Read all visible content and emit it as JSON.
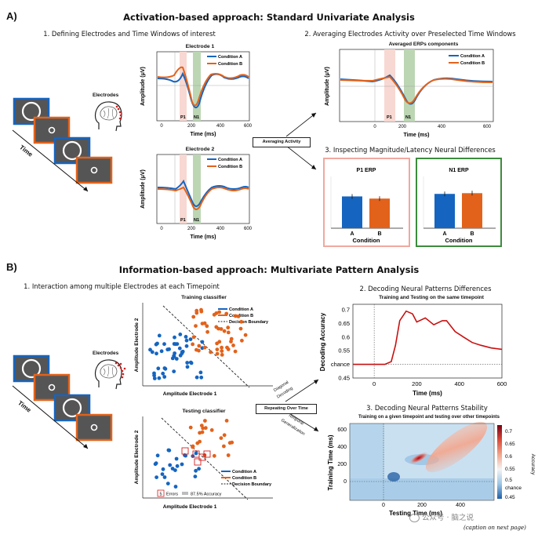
{
  "section_a": {
    "letter": "A)",
    "title": "Activation-based approach: Standard Univariate Analysis",
    "step1": "1. Defining Electrodes and Time Windows of interest",
    "step2": "2. Averaging Electrodes Activity over Preselected Time Windows",
    "step3": "3. Inspecting Magnitude/Latency Neural Differences",
    "electrodes_label": "Electrodes",
    "time_label": "Time",
    "averaging_button": "Averaging Activity",
    "plot_e1": {
      "title": "Electrode 1"
    },
    "plot_e2": {
      "title": "Electrode 2"
    },
    "plot_avg": {
      "title": "Averaged ERPs components"
    },
    "legend": {
      "a": "Condition A",
      "b": "Condition B"
    },
    "ylabel": "Amplitude (μV)",
    "xlabel": "Time (ms)",
    "xticks": [
      "0",
      "200",
      "400",
      "600"
    ],
    "p1_label": "P1",
    "n1_label": "N1",
    "p1_box": {
      "title": "P1 ERP",
      "cond_a": "A",
      "cond_b": "B",
      "xlabel": "Condition",
      "value_a": 0.88,
      "value_b": 0.82
    },
    "n1_box": {
      "title": "N1 ERP",
      "cond_a": "A",
      "cond_b": "B",
      "xlabel": "Condition",
      "value_a": 0.95,
      "value_b": 0.97
    }
  },
  "section_b": {
    "letter": "B)",
    "title": "Information-based approach: Multivariate Pattern Analysis",
    "step1": "1. Interaction among multiple Electrodes at each Timepoint",
    "step2": "2. Decoding Neural Patterns Differences",
    "step3": "3. Decoding Neural Patterns Stability",
    "electrodes_label": "Electrodes",
    "time_label": "Time",
    "repeat_button": "Repeating Over Time",
    "diagonal_label_1": "Diagonal",
    "diagonal_label_2": "Decoding",
    "temporal_label_1": "Temporal",
    "temporal_label_2": "Generalization",
    "training_title": "Training classifier",
    "testing_title": "Testing classifier",
    "scatter_xlabel": "Amplitude Electrode 1",
    "scatter_ylabel": "Amplitude Electrode 2",
    "legend": {
      "a": "Condition A",
      "b": "Condition B",
      "boundary": "Decision Boundary"
    },
    "errors_count": "5",
    "errors_text": "Errors",
    "accuracy_text": "87.5% Accuracy",
    "decoding": {
      "title": "Training and Testing on the same timepoint",
      "ylabel": "Decoding Accuracy",
      "xlabel": "Time (ms)",
      "yticks": [
        "0.7",
        "0.65",
        "0.6",
        "0.55",
        "0.5"
      ],
      "chance_label": "chance",
      "ytick_bottom": "0.45",
      "xticks": [
        "0",
        "200",
        "400",
        "600"
      ]
    },
    "tg": {
      "title": "Training on a given timepoint and testing over other timepoints",
      "ylabel": "Training Time (ms)",
      "xlabel": "Testing Time (ms)",
      "yticks": [
        "600",
        "400",
        "200",
        "0"
      ],
      "xticks": [
        "0",
        "200",
        "400"
      ],
      "cbar_label": "Accuracy",
      "cbar_ticks": [
        "0.7",
        "0.65",
        "0.6",
        "0.55",
        "0.5",
        "chance",
        "0.45"
      ]
    }
  },
  "watermark": "公众号 · 脑之说",
  "caption": "(caption on next page)",
  "chart_data": [
    {
      "type": "line",
      "title": "Training and Testing on the same timepoint",
      "xlabel": "Time (ms)",
      "ylabel": "Decoding Accuracy",
      "x": [
        -100,
        -50,
        0,
        50,
        80,
        100,
        120,
        150,
        180,
        200,
        240,
        280,
        320,
        340,
        380,
        420,
        460,
        500,
        550,
        600
      ],
      "series": [
        {
          "name": "Decoding Accuracy",
          "values": [
            0.5,
            0.5,
            0.5,
            0.5,
            0.51,
            0.57,
            0.66,
            0.695,
            0.685,
            0.655,
            0.67,
            0.645,
            0.66,
            0.66,
            0.62,
            0.6,
            0.58,
            0.57,
            0.56,
            0.555
          ]
        }
      ],
      "xlim": [
        -100,
        600
      ],
      "ylim": [
        0.45,
        0.72
      ],
      "chance": 0.5
    },
    {
      "type": "bar",
      "title": "P1 ERP",
      "xlabel": "Condition",
      "categories": [
        "A",
        "B"
      ],
      "values": [
        0.88,
        0.82
      ]
    },
    {
      "type": "bar",
      "title": "N1 ERP",
      "xlabel": "Condition",
      "categories": [
        "A",
        "B"
      ],
      "values": [
        0.95,
        0.97
      ]
    }
  ],
  "colors": {
    "cond_a": "#1565c0",
    "cond_b": "#e2621b",
    "p1_box": "#f0a8a0",
    "n1_box": "#3d8b3d",
    "decoding": "#c81010"
  }
}
